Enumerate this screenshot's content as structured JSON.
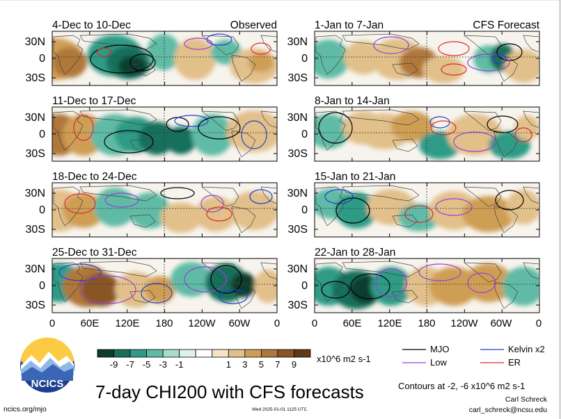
{
  "panels": [
    {
      "title": "4-Dec to 10-Dec",
      "label": "Observed"
    },
    {
      "title": "1-Jan to 7-Jan",
      "label": "CFS Forecast"
    },
    {
      "title": "11-Dec to 17-Dec",
      "label": ""
    },
    {
      "title": "8-Jan to 14-Jan",
      "label": ""
    },
    {
      "title": "18-Dec to 24-Dec",
      "label": ""
    },
    {
      "title": "15-Jan to 21-Jan",
      "label": ""
    },
    {
      "title": "25-Dec to 31-Dec",
      "label": ""
    },
    {
      "title": "22-Jan to 28-Jan",
      "label": ""
    }
  ],
  "lat_ticks": [
    "30N",
    "0",
    "30S"
  ],
  "lon_ticks": [
    "0",
    "60E",
    "120E",
    "180",
    "120W",
    "60W",
    "0"
  ],
  "colorbar": {
    "labels": [
      "-9",
      "-7",
      "-5",
      "-3",
      "-1",
      "1",
      "3",
      "5",
      "7",
      "9"
    ],
    "colors": [
      "#0b3d2e",
      "#166f5b",
      "#2f9b86",
      "#5ebba5",
      "#a7dccb",
      "#ddf2ea",
      "#ffffff",
      "#f2e4c4",
      "#e2c08a",
      "#cf9e55",
      "#b0773a",
      "#8a5526",
      "#5e3a16"
    ],
    "unit": "x10^6 m2 s-1"
  },
  "legend": [
    {
      "label": "MJO",
      "color": "#000000"
    },
    {
      "label": "Kelvin x2",
      "color": "#1f3fcf"
    },
    {
      "label": "Low",
      "color": "#9a3ed8"
    },
    {
      "label": "ER",
      "color": "#e0282b"
    }
  ],
  "contours_note": "Contours at -2, -6 x10^6 m2 s-1",
  "main_title": "7-day CHI200 with CFS forecasts",
  "logo_text": "NCICS",
  "url": "ncics.org/mjo",
  "timestamp": "Wed 2025-01-01 1125 UTC",
  "author": "Carl Schreck",
  "email": "carl_schreck@ncsu.edu",
  "chart_data": [
    {
      "type": "heatmap",
      "title": "4-Dec to 10-Dec",
      "subtitle": "Observed",
      "field": "CHI200",
      "xlabel": "",
      "ylabel": "",
      "x": [
        "0",
        "60E",
        "120E",
        "180",
        "120W",
        "60W",
        "0"
      ],
      "y": [
        "30N",
        "0",
        "30S"
      ],
      "xlim": [
        0,
        360
      ],
      "ylim": [
        -40,
        40
      ],
      "colorbar": [
        -9,
        -7,
        -5,
        -3,
        -1,
        1,
        3,
        5,
        7,
        9
      ],
      "contours": [
        "MJO",
        "Kelvin x2",
        "Low",
        "ER"
      ]
    },
    {
      "type": "heatmap",
      "title": "1-Jan to 7-Jan",
      "subtitle": "CFS Forecast",
      "field": "CHI200",
      "xlabel": "",
      "ylabel": "",
      "x": [
        "0",
        "60E",
        "120E",
        "180",
        "120W",
        "60W",
        "0"
      ],
      "y": [
        "30N",
        "0",
        "30S"
      ],
      "xlim": [
        0,
        360
      ],
      "ylim": [
        -40,
        40
      ],
      "colorbar": [
        -9,
        -7,
        -5,
        -3,
        -1,
        1,
        3,
        5,
        7,
        9
      ],
      "contours": [
        "MJO",
        "Kelvin x2",
        "Low",
        "ER"
      ]
    },
    {
      "type": "heatmap",
      "title": "11-Dec to 17-Dec",
      "field": "CHI200",
      "x": [
        "0",
        "60E",
        "120E",
        "180",
        "120W",
        "60W",
        "0"
      ],
      "y": [
        "30N",
        "0",
        "30S"
      ],
      "xlim": [
        0,
        360
      ],
      "ylim": [
        -40,
        40
      ]
    },
    {
      "type": "heatmap",
      "title": "8-Jan to 14-Jan",
      "field": "CHI200",
      "x": [
        "0",
        "60E",
        "120E",
        "180",
        "120W",
        "60W",
        "0"
      ],
      "y": [
        "30N",
        "0",
        "30S"
      ],
      "xlim": [
        0,
        360
      ],
      "ylim": [
        -40,
        40
      ]
    },
    {
      "type": "heatmap",
      "title": "18-Dec to 24-Dec",
      "field": "CHI200",
      "x": [
        "0",
        "60E",
        "120E",
        "180",
        "120W",
        "60W",
        "0"
      ],
      "y": [
        "30N",
        "0",
        "30S"
      ],
      "xlim": [
        0,
        360
      ],
      "ylim": [
        -40,
        40
      ]
    },
    {
      "type": "heatmap",
      "title": "15-Jan to 21-Jan",
      "field": "CHI200",
      "x": [
        "0",
        "60E",
        "120E",
        "180",
        "120W",
        "60W",
        "0"
      ],
      "y": [
        "30N",
        "0",
        "30S"
      ],
      "xlim": [
        0,
        360
      ],
      "ylim": [
        -40,
        40
      ]
    },
    {
      "type": "heatmap",
      "title": "25-Dec to 31-Dec",
      "field": "CHI200",
      "x": [
        "0",
        "60E",
        "120E",
        "180",
        "120W",
        "60W",
        "0"
      ],
      "y": [
        "30N",
        "0",
        "30S"
      ],
      "xlim": [
        0,
        360
      ],
      "ylim": [
        -40,
        40
      ]
    },
    {
      "type": "heatmap",
      "title": "22-Jan to 28-Jan",
      "field": "CHI200",
      "x": [
        "0",
        "60E",
        "120E",
        "180",
        "120W",
        "60W",
        "0"
      ],
      "y": [
        "30N",
        "0",
        "30S"
      ],
      "xlim": [
        0,
        360
      ],
      "ylim": [
        -40,
        40
      ]
    }
  ]
}
